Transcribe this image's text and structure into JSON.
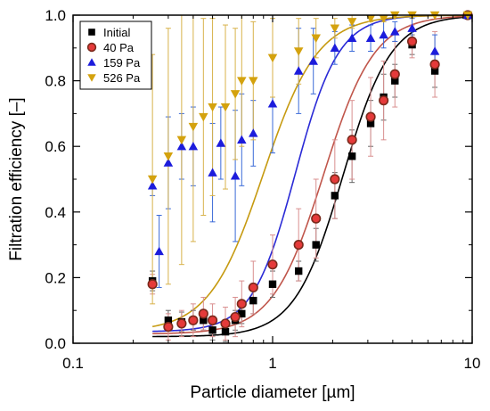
{
  "chart_data": {
    "type": "scatter",
    "xlabel": "Particle diameter [µm]",
    "ylabel": "Filtration efficiency [–]",
    "xscale": "log",
    "xlim": [
      0.1,
      10
    ],
    "ylim": [
      0,
      1
    ],
    "xticks": [
      0.1,
      1,
      10
    ],
    "xtick_labels": [
      "0.1",
      "1",
      "10"
    ],
    "yticks": [
      0,
      0.2,
      0.4,
      0.6,
      0.8,
      1.0
    ],
    "ytick_labels": [
      "0.0",
      "0.2",
      "0.4",
      "0.6",
      "0.8",
      "1.0"
    ],
    "grid": false,
    "legend_position": "top-left",
    "series": [
      {
        "name": "Initial",
        "marker": "square",
        "color": "#000000",
        "error_color": "#666666",
        "x": [
          0.25,
          0.3,
          0.35,
          0.4,
          0.45,
          0.5,
          0.58,
          0.65,
          0.7,
          0.8,
          1.0,
          1.35,
          1.65,
          2.05,
          2.5,
          3.1,
          3.6,
          4.1,
          5.0,
          6.5,
          9.5
        ],
        "y": [
          0.19,
          0.07,
          0.065,
          0.07,
          0.07,
          0.04,
          0.035,
          0.07,
          0.09,
          0.13,
          0.18,
          0.22,
          0.3,
          0.45,
          0.57,
          0.67,
          0.75,
          0.8,
          0.91,
          0.83,
          1.0
        ],
        "err": [
          0.03,
          0.03,
          0.03,
          0.03,
          0.03,
          0.03,
          0.03,
          0.03,
          0.03,
          0.04,
          0.04,
          0.03,
          0.05,
          0.07,
          0.08,
          0.07,
          0.07,
          0.05,
          0.03,
          0.05,
          0
        ]
      },
      {
        "name": "40 Pa",
        "marker": "circle",
        "color": "#e53a3a",
        "edge_color": "#7a2a1c",
        "error_color": "#d98f8f",
        "x": [
          0.25,
          0.3,
          0.35,
          0.4,
          0.45,
          0.5,
          0.58,
          0.65,
          0.7,
          0.8,
          1.0,
          1.35,
          1.65,
          2.05,
          2.5,
          3.1,
          3.6,
          4.1,
          5.0,
          6.5,
          9.5
        ],
        "y": [
          0.18,
          0.05,
          0.06,
          0.07,
          0.09,
          0.07,
          0.06,
          0.08,
          0.12,
          0.17,
          0.24,
          0.3,
          0.38,
          0.5,
          0.62,
          0.69,
          0.74,
          0.82,
          0.92,
          0.85,
          1.0
        ],
        "err": [
          0.03,
          0.04,
          0.04,
          0.05,
          0.05,
          0.05,
          0.05,
          0.06,
          0.07,
          0.08,
          0.09,
          0.11,
          0.12,
          0.12,
          0.12,
          0.12,
          0.12,
          0.1,
          0.05,
          0.1,
          0
        ]
      },
      {
        "name": "159 Pa",
        "marker": "triangle-up",
        "color": "#1c1cdc",
        "error_color": "#3a6ad8",
        "x": [
          0.25,
          0.27,
          0.3,
          0.35,
          0.4,
          0.5,
          0.55,
          0.65,
          0.7,
          0.8,
          1.0,
          1.35,
          1.6,
          2.05,
          2.5,
          3.1,
          3.6,
          4.1,
          5.0,
          6.5,
          9.5
        ],
        "y": [
          0.48,
          0.28,
          0.55,
          0.6,
          0.6,
          0.52,
          0.61,
          0.51,
          0.62,
          0.64,
          0.73,
          0.83,
          0.86,
          0.9,
          0.93,
          0.93,
          0.94,
          0.95,
          0.96,
          0.89,
          1.0
        ],
        "err": [
          0.03,
          0.11,
          0.14,
          0.1,
          0.12,
          0.15,
          0.11,
          0.2,
          0.14,
          0.1,
          0.15,
          0.13,
          0.1,
          0.05,
          0.04,
          0.04,
          0.04,
          0.03,
          0.03,
          0.05,
          0
        ]
      },
      {
        "name": "526 Pa",
        "marker": "triangle-down",
        "color": "#d4a20e",
        "error_color": "#d8b24a",
        "x": [
          0.25,
          0.3,
          0.35,
          0.4,
          0.45,
          0.5,
          0.58,
          0.65,
          0.7,
          0.8,
          1.0,
          1.35,
          1.65,
          2.05,
          2.5,
          3.1,
          3.6,
          4.1,
          5.0,
          6.5,
          9.5
        ],
        "y": [
          0.5,
          0.57,
          0.62,
          0.66,
          0.69,
          0.72,
          0.72,
          0.76,
          0.8,
          0.8,
          0.87,
          0.89,
          0.93,
          0.96,
          0.98,
          0.99,
          0.99,
          1.0,
          1.0,
          1.0,
          1.0
        ],
        "err": [
          0.38,
          0.39,
          0.38,
          0.35,
          0.3,
          0.27,
          0.25,
          0.2,
          0.2,
          0.18,
          0.12,
          0.1,
          0.06,
          0.03,
          0.02,
          0.01,
          0.01,
          0,
          0,
          0,
          0
        ]
      }
    ],
    "fit_lines": [
      {
        "series": "Initial",
        "color": "#000000",
        "d50": 2.25,
        "k": 3.6,
        "floor": 0.02
      },
      {
        "series": "40 Pa",
        "color": "#c0564b",
        "d50": 1.8,
        "k": 3.4,
        "floor": 0.028
      },
      {
        "series": "159 Pa",
        "color": "#2a2ad6",
        "d50": 1.3,
        "k": 4.0,
        "floor": 0.035
      },
      {
        "series": "526 Pa",
        "color": "#c69a10",
        "d50": 0.9,
        "k": 3.2,
        "floor": 0.035
      }
    ]
  }
}
